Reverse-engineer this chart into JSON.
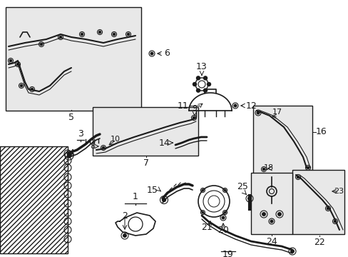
{
  "bg_color": "#ffffff",
  "line_color": "#1a1a1a",
  "box_bg": "#e8e8e8",
  "fig_width": 4.89,
  "fig_height": 3.6,
  "dpi": 100
}
